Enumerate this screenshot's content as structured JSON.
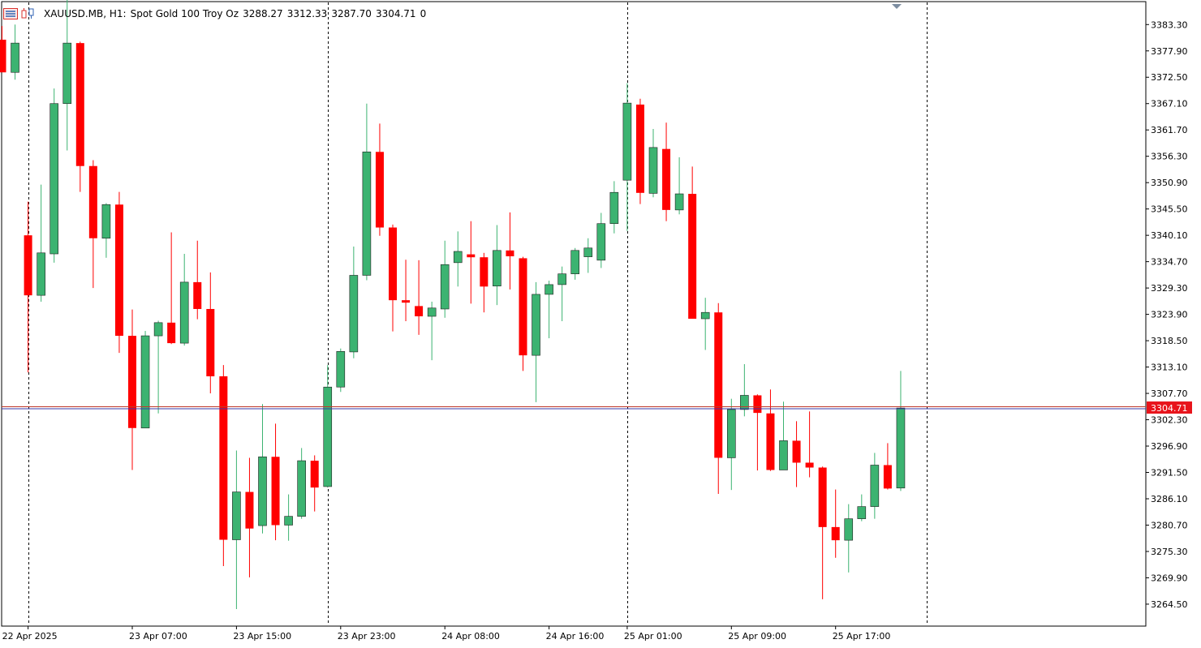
{
  "header": {
    "symbol": "XAUUSD.MB, H1:",
    "description": "Spot Gold 100 Troy Oz",
    "open": "3288.27",
    "high": "3312.33",
    "low": "3287.70",
    "close": "3304.71",
    "volume": "0",
    "icons": [
      "table-icon",
      "candle-icon"
    ]
  },
  "colors": {
    "bull": "#3cb371",
    "bear": "#ff0000",
    "price_line": "#c0392b",
    "grid": "#000000",
    "price_label_bg": "#e8141b"
  },
  "chart_data": {
    "type": "candlestick",
    "symbol": "XAUUSD.MB",
    "timeframe": "H1",
    "ylim": [
      3260,
      3388
    ],
    "yticks": [
      "3383.30",
      "3377.90",
      "3372.50",
      "3367.10",
      "3361.70",
      "3356.30",
      "3350.90",
      "3345.50",
      "3340.10",
      "3334.70",
      "3329.30",
      "3323.90",
      "3318.50",
      "3313.10",
      "3307.70",
      "3302.30",
      "3296.90",
      "3291.50",
      "3286.10",
      "3280.70",
      "3275.30",
      "3269.90",
      "3264.50"
    ],
    "current_price": "3304.71",
    "time_labels": [
      "22 Apr 2025",
      "23 Apr 07:00",
      "23 Apr 15:00",
      "23 Apr 23:00",
      "24 Apr 08:00",
      "24 Apr 16:00",
      "25 Apr 01:00",
      "25 Apr 09:00",
      "25 Apr 17:00"
    ],
    "candles": [
      {
        "o": 3380.2,
        "h": 3383.0,
        "l": 3374.5,
        "c": 3373.5
      },
      {
        "o": 3373.5,
        "h": 3383.3,
        "l": 3372.0,
        "c": 3379.5
      },
      {
        "o": 3340.1,
        "h": 3347.0,
        "l": 3312.0,
        "c": 3327.8
      },
      {
        "o": 3327.8,
        "h": 3350.5,
        "l": 3326.5,
        "c": 3336.5
      },
      {
        "o": 3336.3,
        "h": 3370.2,
        "l": 3334.5,
        "c": 3367.1
      },
      {
        "o": 3367.1,
        "h": 3390.0,
        "l": 3357.5,
        "c": 3379.5
      },
      {
        "o": 3379.5,
        "h": 3379.8,
        "l": 3349.0,
        "c": 3354.3
      },
      {
        "o": 3354.3,
        "h": 3355.5,
        "l": 3329.3,
        "c": 3339.5
      },
      {
        "o": 3339.5,
        "h": 3346.7,
        "l": 3335.5,
        "c": 3346.4
      },
      {
        "o": 3346.4,
        "h": 3349.0,
        "l": 3316.0,
        "c": 3319.5
      },
      {
        "o": 3319.5,
        "h": 3324.9,
        "l": 3292.0,
        "c": 3300.6
      },
      {
        "o": 3300.6,
        "h": 3320.5,
        "l": 3300.6,
        "c": 3319.5
      },
      {
        "o": 3319.5,
        "h": 3322.6,
        "l": 3303.6,
        "c": 3322.2
      },
      {
        "o": 3322.2,
        "h": 3340.7,
        "l": 3317.8,
        "c": 3318.0
      },
      {
        "o": 3318.0,
        "h": 3336.3,
        "l": 3317.5,
        "c": 3330.5
      },
      {
        "o": 3330.5,
        "h": 3339.0,
        "l": 3322.9,
        "c": 3325.0
      },
      {
        "o": 3325.0,
        "h": 3332.5,
        "l": 3307.7,
        "c": 3311.2
      },
      {
        "o": 3311.2,
        "h": 3313.5,
        "l": 3272.3,
        "c": 3277.7
      },
      {
        "o": 3277.7,
        "h": 3296.0,
        "l": 3263.5,
        "c": 3287.5
      },
      {
        "o": 3287.5,
        "h": 3294.5,
        "l": 3270.0,
        "c": 3280.0
      },
      {
        "o": 3280.6,
        "h": 3305.5,
        "l": 3279.0,
        "c": 3294.7
      },
      {
        "o": 3294.7,
        "h": 3301.5,
        "l": 3277.6,
        "c": 3280.7
      },
      {
        "o": 3280.7,
        "h": 3287.0,
        "l": 3277.5,
        "c": 3282.5
      },
      {
        "o": 3282.5,
        "h": 3296.5,
        "l": 3282.0,
        "c": 3293.9
      },
      {
        "o": 3293.9,
        "h": 3295.0,
        "l": 3283.5,
        "c": 3288.4
      },
      {
        "o": 3288.6,
        "h": 3313.5,
        "l": 3288.4,
        "c": 3309.0
      },
      {
        "o": 3309.0,
        "h": 3316.9,
        "l": 3308.0,
        "c": 3316.3
      },
      {
        "o": 3316.2,
        "h": 3337.8,
        "l": 3314.9,
        "c": 3331.9
      },
      {
        "o": 3331.9,
        "h": 3367.1,
        "l": 3330.9,
        "c": 3357.2
      },
      {
        "o": 3357.2,
        "h": 3363.0,
        "l": 3340.0,
        "c": 3341.7
      },
      {
        "o": 3341.7,
        "h": 3342.3,
        "l": 3320.4,
        "c": 3326.8
      },
      {
        "o": 3326.8,
        "h": 3335.1,
        "l": 3322.5,
        "c": 3326.3
      },
      {
        "o": 3325.6,
        "h": 3335.0,
        "l": 3319.7,
        "c": 3323.5
      },
      {
        "o": 3323.5,
        "h": 3326.5,
        "l": 3314.5,
        "c": 3325.2
      },
      {
        "o": 3325.0,
        "h": 3339.0,
        "l": 3323.2,
        "c": 3334.1
      },
      {
        "o": 3334.5,
        "h": 3340.9,
        "l": 3329.6,
        "c": 3336.8
      },
      {
        "o": 3336.2,
        "h": 3343.0,
        "l": 3326.1,
        "c": 3335.6
      },
      {
        "o": 3335.6,
        "h": 3336.5,
        "l": 3324.3,
        "c": 3329.6
      },
      {
        "o": 3329.7,
        "h": 3342.2,
        "l": 3325.8,
        "c": 3337.0
      },
      {
        "o": 3337.0,
        "h": 3344.8,
        "l": 3329.0,
        "c": 3335.8
      },
      {
        "o": 3335.4,
        "h": 3335.7,
        "l": 3312.3,
        "c": 3315.5
      },
      {
        "o": 3315.5,
        "h": 3330.5,
        "l": 3305.9,
        "c": 3328.0
      },
      {
        "o": 3328.0,
        "h": 3330.8,
        "l": 3319.0,
        "c": 3330.0
      },
      {
        "o": 3330.0,
        "h": 3333.7,
        "l": 3322.5,
        "c": 3332.2
      },
      {
        "o": 3332.2,
        "h": 3337.5,
        "l": 3331.0,
        "c": 3337.0
      },
      {
        "o": 3335.7,
        "h": 3339.5,
        "l": 3332.4,
        "c": 3337.5
      },
      {
        "o": 3335.0,
        "h": 3344.7,
        "l": 3333.4,
        "c": 3342.5
      },
      {
        "o": 3342.5,
        "h": 3351.2,
        "l": 3340.5,
        "c": 3348.9
      },
      {
        "o": 3351.4,
        "h": 3371.3,
        "l": 3341.0,
        "c": 3367.2
      },
      {
        "o": 3366.9,
        "h": 3368.1,
        "l": 3346.5,
        "c": 3348.8
      },
      {
        "o": 3348.7,
        "h": 3361.9,
        "l": 3347.9,
        "c": 3358.1
      },
      {
        "o": 3357.8,
        "h": 3363.2,
        "l": 3343.0,
        "c": 3345.3
      },
      {
        "o": 3345.3,
        "h": 3356.1,
        "l": 3344.4,
        "c": 3348.6
      },
      {
        "o": 3348.6,
        "h": 3354.2,
        "l": 3323.0,
        "c": 3323.0
      },
      {
        "o": 3323.0,
        "h": 3327.3,
        "l": 3316.6,
        "c": 3324.3
      },
      {
        "o": 3324.3,
        "h": 3326.2,
        "l": 3287.1,
        "c": 3294.5
      },
      {
        "o": 3294.5,
        "h": 3306.6,
        "l": 3287.9,
        "c": 3304.4
      },
      {
        "o": 3304.4,
        "h": 3313.7,
        "l": 3303.0,
        "c": 3307.3
      },
      {
        "o": 3307.3,
        "h": 3307.5,
        "l": 3291.9,
        "c": 3303.7
      },
      {
        "o": 3303.6,
        "h": 3308.5,
        "l": 3291.8,
        "c": 3292.0
      },
      {
        "o": 3292.0,
        "h": 3306.0,
        "l": 3292.0,
        "c": 3298.0
      },
      {
        "o": 3298.0,
        "h": 3302.0,
        "l": 3288.5,
        "c": 3293.5
      },
      {
        "o": 3293.5,
        "h": 3304.0,
        "l": 3290.5,
        "c": 3292.5
      },
      {
        "o": 3292.5,
        "h": 3292.7,
        "l": 3265.5,
        "c": 3280.3
      },
      {
        "o": 3280.3,
        "h": 3288.0,
        "l": 3274.0,
        "c": 3277.6
      },
      {
        "o": 3277.6,
        "h": 3285.0,
        "l": 3271.0,
        "c": 3282.0
      },
      {
        "o": 3282.0,
        "h": 3287.0,
        "l": 3281.5,
        "c": 3284.5
      },
      {
        "o": 3284.5,
        "h": 3295.5,
        "l": 3282.0,
        "c": 3293.0
      },
      {
        "o": 3293.0,
        "h": 3297.5,
        "l": 3288.0,
        "c": 3288.2
      },
      {
        "o": 3288.3,
        "h": 3312.3,
        "l": 3287.7,
        "c": 3304.7
      }
    ]
  }
}
